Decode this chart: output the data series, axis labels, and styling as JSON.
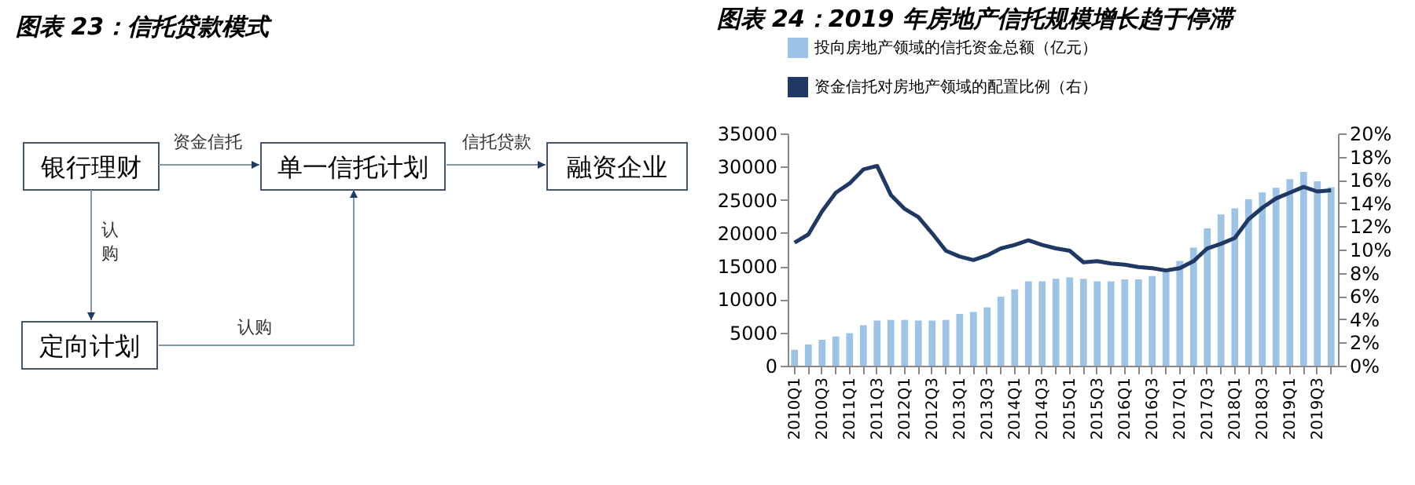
{
  "chart_data": [
    {
      "type": "other",
      "title": "图表 23：信托贷款模式",
      "annotations": [
        "银行理财",
        "单一信托计划",
        "融资企业",
        "定向计划",
        "资金信托",
        "信托贷款",
        "认购",
        "认购"
      ]
    },
    {
      "type": "bar",
      "title": "图表 24：2019 年房地产信托规模增长趋于停滞",
      "categories": [
        "2010Q1",
        null,
        "2010Q3",
        null,
        "2011Q1",
        null,
        "2011Q3",
        null,
        "2012Q1",
        null,
        "2012Q3",
        null,
        "2013Q1",
        null,
        "2013Q3",
        null,
        "2014Q1",
        null,
        "2014Q3",
        null,
        "2015Q1",
        null,
        "2015Q3",
        null,
        "2016Q1",
        null,
        "2016Q3",
        null,
        "2017Q1",
        null,
        "2017Q3",
        null,
        "2018Q1",
        null,
        "2018Q3",
        null,
        "2019Q1",
        null,
        "2019Q3",
        null
      ],
      "series": [
        {
          "name": "投向房地产领域的信托资金总额（亿元）",
          "type": "bar",
          "color": "#9dc3e6",
          "values": [
            2400,
            3200,
            3900,
            4400,
            4900,
            6100,
            6800,
            6900,
            6900,
            6800,
            6800,
            6900,
            7800,
            8100,
            8800,
            10400,
            11500,
            12700,
            12700,
            13100,
            13300,
            13100,
            12700,
            12700,
            13000,
            13000,
            13500,
            14400,
            15800,
            17800,
            20700,
            22800,
            23700,
            25100,
            26100,
            26800,
            28100,
            29200,
            27800,
            26900
          ]
        },
        {
          "name": "资金信托对房地产领域的配置比例（右）",
          "type": "line",
          "axis": "y2",
          "color": "#1f3864",
          "values": [
            10.6,
            11.3,
            13.3,
            14.9,
            15.7,
            16.9,
            17.2,
            14.7,
            13.5,
            12.8,
            11.4,
            9.9,
            9.4,
            9.1,
            9.5,
            10.1,
            10.4,
            10.8,
            10.4,
            10.1,
            9.9,
            8.9,
            9.0,
            8.8,
            8.7,
            8.5,
            8.4,
            8.2,
            8.4,
            9.0,
            10.1,
            10.5,
            11.0,
            12.6,
            13.6,
            14.4,
            14.9,
            15.4,
            15.0,
            15.1
          ]
        }
      ],
      "ylim": [
        0,
        35000
      ],
      "yticks": [
        0,
        5000,
        10000,
        15000,
        20000,
        25000,
        30000,
        35000
      ],
      "y2lim": [
        0,
        20
      ],
      "y2ticks": [
        {
          "value": 0,
          "label": "0%"
        },
        {
          "value": 2,
          "label": "2%"
        },
        {
          "value": 4,
          "label": "4%"
        },
        {
          "value": 6,
          "label": "6%"
        },
        {
          "value": 8,
          "label": "8%"
        },
        {
          "value": 10,
          "label": "10%"
        },
        {
          "value": 12,
          "label": "12%"
        },
        {
          "value": 14,
          "label": "14%"
        },
        {
          "value": 16,
          "label": "16%"
        },
        {
          "value": 18,
          "label": "18%"
        },
        {
          "value": 20,
          "label": "20%"
        }
      ],
      "legend": "top"
    }
  ]
}
